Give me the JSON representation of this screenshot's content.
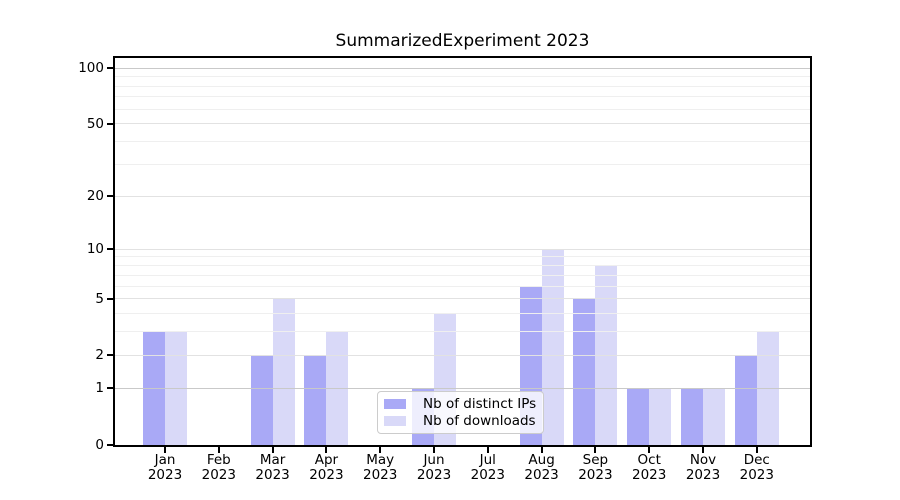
{
  "chart_data": {
    "type": "bar",
    "title": "SummarizedExperiment 2023",
    "categories": [
      "Jan 2023",
      "Feb 2023",
      "Mar 2023",
      "Apr 2023",
      "May 2023",
      "Jun 2023",
      "Jul 2023",
      "Aug 2023",
      "Sep 2023",
      "Oct 2023",
      "Nov 2023",
      "Dec 2023"
    ],
    "series": [
      {
        "name": "Nb of distinct IPs",
        "color": "#a9a9f6",
        "values": [
          3,
          0,
          2,
          2,
          0,
          1,
          0,
          6,
          5,
          1,
          1,
          2
        ]
      },
      {
        "name": "Nb of downloads",
        "color": "#d9d9f8",
        "values": [
          3,
          0,
          5,
          3,
          0,
          4,
          0,
          10,
          8,
          1,
          1,
          3
        ]
      }
    ],
    "yscale": "log1p",
    "ylim": [
      0,
      100
    ],
    "yticks": [
      0,
      1,
      2,
      5,
      10,
      20,
      50,
      100
    ],
    "minor_gridlines": [
      3,
      4,
      6,
      7,
      8,
      9,
      30,
      40,
      60,
      70,
      80,
      90
    ],
    "grid": "horizontal",
    "legend_position": "lower center",
    "colors": {
      "axis": "#000000",
      "grid_emphasis": "#c9c9c9",
      "grid_major": "#e2e2e2",
      "grid_minor": "#efefef",
      "background": "#ffffff"
    }
  }
}
